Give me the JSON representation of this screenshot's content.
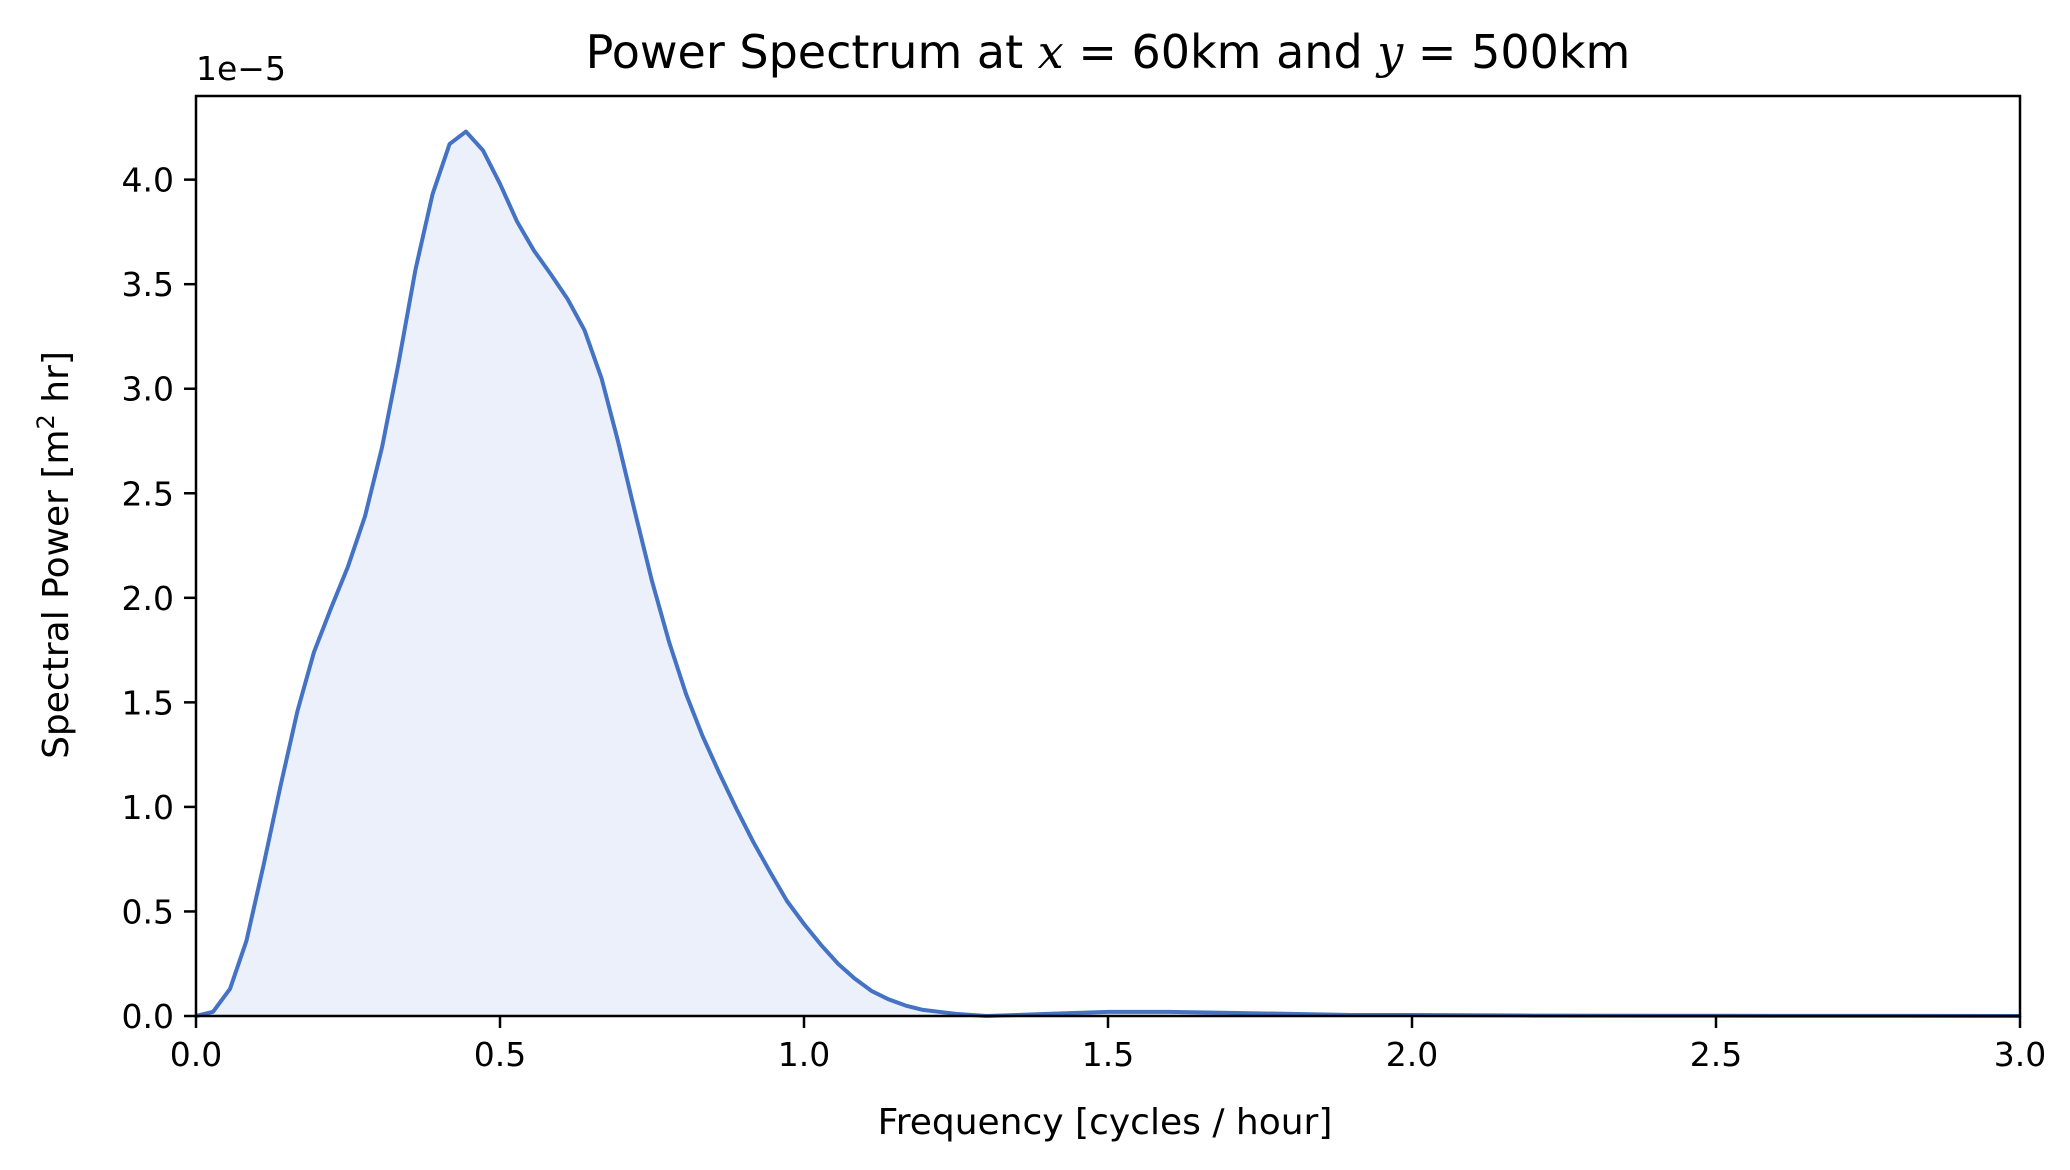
{
  "chart_data": {
    "type": "area",
    "title": {
      "prefix": "Power Spectrum at ",
      "x_var": "x",
      "x_value": "60km",
      "joiner": " and ",
      "y_var": "y",
      "y_value": "500km",
      "equals": " = "
    },
    "xlabel": "Frequency [cycles / hour]",
    "ylabel": {
      "pre": "Spectral Power [m",
      "sup": "2",
      "post": " hr]"
    },
    "offset_text": "1e−5",
    "xlim": [
      0,
      3.0
    ],
    "ylim": [
      0,
      4.4
    ],
    "x_ticks": [
      0,
      0.5,
      1.0,
      1.5,
      2.0,
      2.5,
      3.0
    ],
    "x_tick_labels": [
      "0.0",
      "0.5",
      "1.0",
      "1.5",
      "2.0",
      "2.5",
      "3.0"
    ],
    "y_ticks": [
      0,
      0.5,
      1.0,
      1.5,
      2.0,
      2.5,
      3.0,
      3.5,
      4.0
    ],
    "y_tick_labels": [
      "0.0",
      "0.5",
      "1.0",
      "1.5",
      "2.0",
      "2.5",
      "3.0",
      "3.5",
      "4.0"
    ],
    "grid": false,
    "line_color": "#4472c4",
    "fill_color": "#ebf0fa",
    "series": [
      {
        "x": [
          0,
          0.028,
          0.056,
          0.083,
          0.111,
          0.139,
          0.167,
          0.194,
          0.222,
          0.25,
          0.278,
          0.306,
          0.333,
          0.361,
          0.389,
          0.417,
          0.444,
          0.472,
          0.5,
          0.528,
          0.556,
          0.583,
          0.611,
          0.639,
          0.667,
          0.694,
          0.722,
          0.75,
          0.778,
          0.806,
          0.833,
          0.861,
          0.889,
          0.917,
          0.944,
          0.972,
          1.0,
          1.028,
          1.056,
          1.083,
          1.111,
          1.139,
          1.167,
          1.194,
          1.222,
          1.25,
          1.3,
          1.35,
          1.4,
          1.5,
          1.6,
          1.7,
          1.8,
          1.9,
          2.0,
          2.2,
          2.5,
          3.0
        ],
        "y": [
          0,
          0.02,
          0.13,
          0.36,
          0.72,
          1.1,
          1.46,
          1.74,
          1.95,
          2.15,
          2.39,
          2.72,
          3.12,
          3.57,
          3.93,
          4.17,
          4.23,
          4.14,
          3.98,
          3.8,
          3.66,
          3.55,
          3.43,
          3.28,
          3.05,
          2.75,
          2.41,
          2.08,
          1.79,
          1.54,
          1.34,
          1.16,
          0.99,
          0.83,
          0.69,
          0.55,
          0.44,
          0.34,
          0.25,
          0.18,
          0.12,
          0.08,
          0.05,
          0.03,
          0.02,
          0.01,
          0.0,
          0.005,
          0.01,
          0.02,
          0.02,
          0.015,
          0.01,
          0.005,
          0.005,
          0.002,
          0.001,
          0.0
        ]
      }
    ]
  }
}
